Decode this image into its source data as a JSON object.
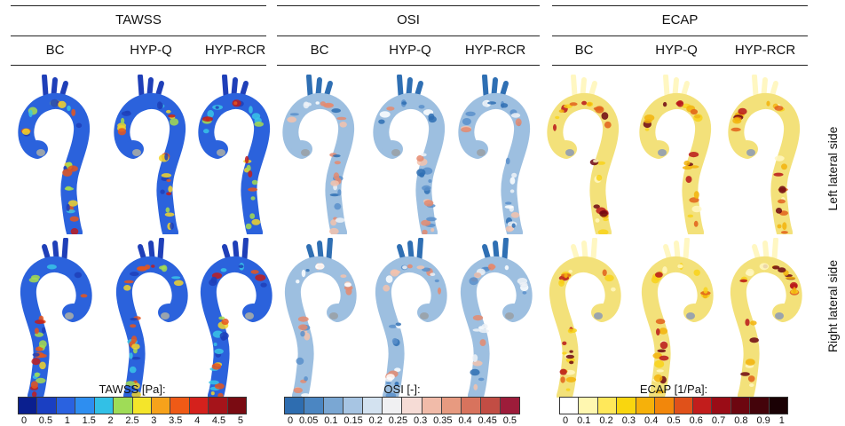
{
  "groups": [
    {
      "title": "TAWSS",
      "cols": [
        "BC",
        "HYP-Q",
        "HYP-RCR"
      ],
      "colorbar": {
        "title": "TAWSS [Pa]:",
        "ticks": [
          "0",
          "0.5",
          "1",
          "1.5",
          "2",
          "2.5",
          "3",
          "3.5",
          "4",
          "4.5",
          "5"
        ],
        "colors": [
          "#0a1f8f",
          "#1a3fc2",
          "#2a62e0",
          "#2e8ef0",
          "#32c0e6",
          "#9fdc57",
          "#f4e52a",
          "#f7a21b",
          "#ef5a16",
          "#d5211c",
          "#a5141a",
          "#7a0b12"
        ]
      },
      "palette": {
        "base": "#2b62dc",
        "spots": [
          "#1f3fb8",
          "#38c4e6",
          "#a6dc4f",
          "#f2d52c",
          "#e6561c",
          "#c11d1d"
        ]
      }
    },
    {
      "title": "OSI",
      "cols": [
        "BC",
        "HYP-Q",
        "HYP-RCR"
      ],
      "colorbar": {
        "title": "OSI [-]:",
        "ticks": [
          "0",
          "0.05",
          "0.1",
          "0.15",
          "0.2",
          "0.25",
          "0.3",
          "0.35",
          "0.4",
          "0.45",
          "0.5"
        ],
        "colors": [
          "#2e6db0",
          "#4b86c2",
          "#7aa7d3",
          "#a7c5e3",
          "#d3e2f0",
          "#f0f0f2",
          "#f6dcd6",
          "#f1bba9",
          "#e79a80",
          "#d8735d",
          "#c24d44",
          "#9d1c3a"
        ]
      },
      "palette": {
        "base": "#9dbfe0",
        "spots": [
          "#2f6fb3",
          "#5b8fca",
          "#eef2f7",
          "#f3c2ad",
          "#e58a6f",
          "#ffffff"
        ]
      }
    },
    {
      "title": "ECAP",
      "cols": [
        "BC",
        "HYP-Q",
        "HYP-RCR"
      ],
      "colorbar": {
        "title": "ECAP [1/Pa]:",
        "ticks": [
          "0",
          "0.1",
          "0.2",
          "0.3",
          "0.4",
          "0.5",
          "0.6",
          "0.7",
          "0.8",
          "0.9",
          "1"
        ],
        "colors": [
          "#ffffff",
          "#fff7b0",
          "#ffe85a",
          "#f9d60f",
          "#f6b10a",
          "#f2870b",
          "#e0511a",
          "#c21d1c",
          "#9a0c16",
          "#6d0610",
          "#44030a",
          "#1a0104"
        ]
      },
      "palette": {
        "base": "#f3e17a",
        "spots": [
          "#fff7c2",
          "#f8d21a",
          "#f2b30c",
          "#e0601b",
          "#b8161a",
          "#6d0610"
        ]
      }
    }
  ],
  "row_labels": [
    "Left lateral side",
    "Right lateral side"
  ]
}
